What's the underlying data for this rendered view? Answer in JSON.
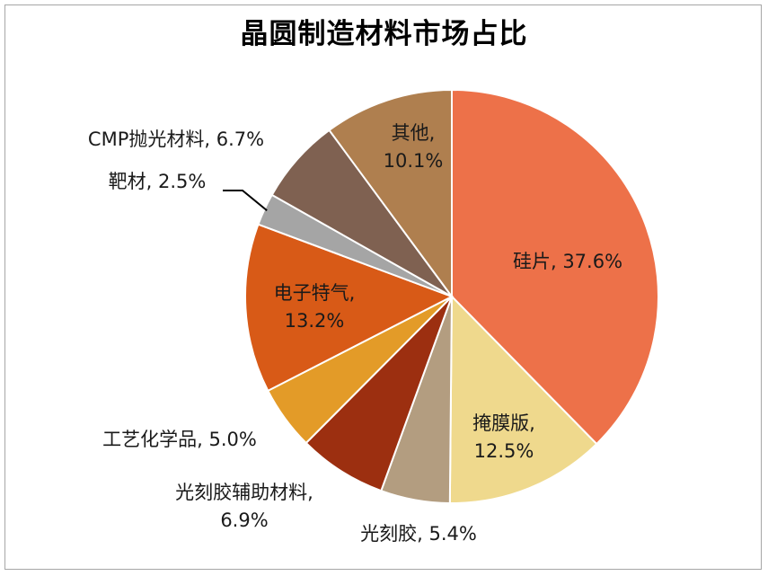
{
  "chart_data": {
    "type": "pie",
    "title": "晶圆制造材料市场占比",
    "unit": "%",
    "start_angle_deg": 0,
    "direction": "clockwise",
    "slices": [
      {
        "name": "硅片",
        "value": 37.6,
        "display": "37.6%",
        "color": "#ed7149"
      },
      {
        "name": "掩膜版",
        "value": 12.5,
        "display": "12.5%",
        "color": "#efd98d"
      },
      {
        "name": "光刻胶",
        "value": 5.4,
        "display": "5.4%",
        "color": "#b39d80"
      },
      {
        "name": "光刻胶辅助材料",
        "value": 6.9,
        "display": "6.9%",
        "color": "#9c2f10"
      },
      {
        "name": "工艺化学品",
        "value": 5.0,
        "display": "5.0%",
        "color": "#e39b28"
      },
      {
        "name": "电子特气",
        "value": 13.2,
        "display": "13.2%",
        "color": "#d85a17"
      },
      {
        "name": "靶材",
        "value": 2.5,
        "display": "2.5%",
        "color": "#a5a5a5"
      },
      {
        "name": "CMP抛光材料",
        "value": 6.7,
        "display": "6.7%",
        "color": "#7f6151"
      },
      {
        "name": "其他",
        "value": 10.1,
        "display": "10.1%",
        "color": "#af7f4f"
      }
    ]
  }
}
